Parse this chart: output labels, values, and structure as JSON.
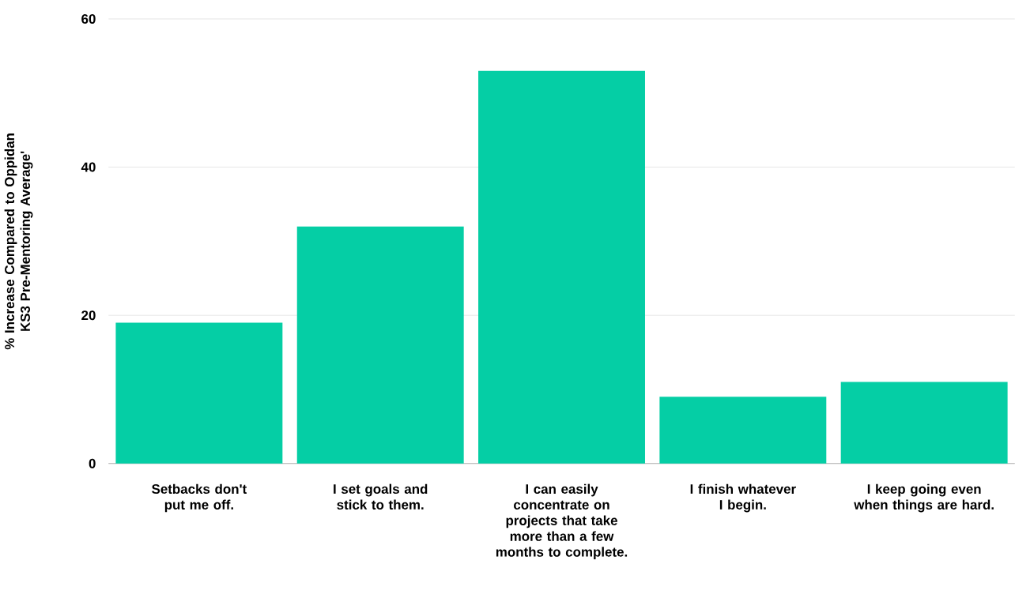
{
  "chart_data": {
    "type": "bar",
    "ylabel": "% Increase Compared to Oppidan KS3 Pre-Mentoring Average'",
    "categories": [
      "Setbacks don't put me off.",
      "I set goals and stick to them.",
      "I can easily concentrate on projects that take more than a few months to complete.",
      "I finish whatever I begin.",
      "I keep going even when things are hard."
    ],
    "values": [
      19,
      32,
      53,
      9,
      11
    ],
    "color": "#05cea5",
    "ylim": [
      0,
      60
    ],
    "yticks": [
      0,
      20,
      40,
      60
    ],
    "grid": "y"
  }
}
